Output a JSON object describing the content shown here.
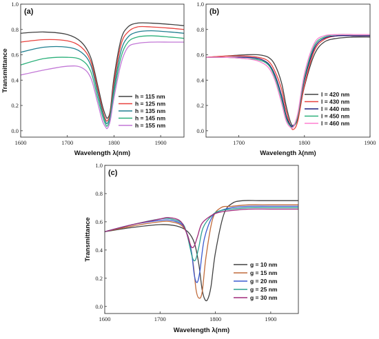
{
  "chart_data": [
    {
      "type": "line",
      "panel_label": "(a)",
      "xlabel": "Wavelength λ(nm)",
      "ylabel": "Transmittance",
      "xlim": [
        1600,
        1950
      ],
      "ylim": [
        -0.05,
        1.0
      ],
      "xticks": [
        1600,
        1700,
        1800,
        1900
      ],
      "yticks": [
        0.0,
        0.2,
        0.4,
        0.6,
        0.8,
        1.0
      ],
      "xtick_labels": [
        "1600",
        "1700",
        "1800",
        "1900"
      ],
      "ytick_labels": [
        "0.0",
        "0.2",
        "0.4",
        "0.6",
        "0.8",
        "1.0"
      ],
      "legend_position": "bottom-right",
      "series": [
        {
          "name": "h = 115 nm",
          "color": "#404040",
          "x": [
            1600,
            1650,
            1700,
            1730,
            1750,
            1765,
            1775,
            1782,
            1786,
            1792,
            1800,
            1815,
            1830,
            1850,
            1880,
            1920,
            1950
          ],
          "y": [
            0.77,
            0.78,
            0.76,
            0.7,
            0.58,
            0.36,
            0.2,
            0.12,
            0.1,
            0.16,
            0.42,
            0.72,
            0.82,
            0.85,
            0.85,
            0.84,
            0.83
          ]
        },
        {
          "name": "h = 125 nm",
          "color": "#e8413c",
          "x": [
            1600,
            1650,
            1700,
            1730,
            1750,
            1765,
            1775,
            1782,
            1786,
            1792,
            1800,
            1815,
            1830,
            1850,
            1880,
            1920,
            1950
          ],
          "y": [
            0.7,
            0.72,
            0.71,
            0.66,
            0.55,
            0.33,
            0.17,
            0.09,
            0.08,
            0.14,
            0.38,
            0.68,
            0.78,
            0.82,
            0.82,
            0.81,
            0.8
          ]
        },
        {
          "name": "h = 135 nm",
          "color": "#1f7f8f",
          "x": [
            1600,
            1650,
            1700,
            1730,
            1750,
            1765,
            1775,
            1782,
            1786,
            1792,
            1800,
            1815,
            1830,
            1850,
            1880,
            1920,
            1950
          ],
          "y": [
            0.62,
            0.66,
            0.66,
            0.62,
            0.52,
            0.3,
            0.15,
            0.07,
            0.06,
            0.12,
            0.34,
            0.63,
            0.74,
            0.78,
            0.79,
            0.78,
            0.77
          ]
        },
        {
          "name": "h = 145 nm",
          "color": "#2bb07a",
          "x": [
            1600,
            1650,
            1700,
            1730,
            1750,
            1765,
            1775,
            1782,
            1786,
            1792,
            1800,
            1815,
            1830,
            1850,
            1880,
            1920,
            1950
          ],
          "y": [
            0.52,
            0.57,
            0.58,
            0.56,
            0.47,
            0.26,
            0.12,
            0.05,
            0.04,
            0.1,
            0.3,
            0.58,
            0.7,
            0.74,
            0.75,
            0.74,
            0.73
          ]
        },
        {
          "name": "h = 155 nm",
          "color": "#c277d6",
          "x": [
            1600,
            1650,
            1700,
            1730,
            1750,
            1765,
            1775,
            1782,
            1786,
            1792,
            1800,
            1815,
            1830,
            1850,
            1880,
            1920,
            1950
          ],
          "y": [
            0.44,
            0.48,
            0.51,
            0.5,
            0.42,
            0.22,
            0.08,
            0.03,
            0.02,
            0.08,
            0.26,
            0.53,
            0.66,
            0.69,
            0.7,
            0.7,
            0.7
          ]
        }
      ]
    },
    {
      "type": "line",
      "panel_label": "(b)",
      "xlabel": "Wavelength λ(nm)",
      "ylabel": "",
      "xlim": [
        1650,
        1900
      ],
      "ylim": [
        -0.05,
        1.0
      ],
      "xticks": [
        1700,
        1800,
        1900
      ],
      "yticks": [
        0.0,
        0.2,
        0.4,
        0.6,
        0.8,
        1.0
      ],
      "xtick_labels": [
        "1700",
        "1800",
        "1900"
      ],
      "ytick_labels": [
        "0.0",
        "0.2",
        "0.4",
        "0.6",
        "0.8",
        "1.0"
      ],
      "legend_position": "bottom-right",
      "series": [
        {
          "name": "l = 420 nm",
          "color": "#404040",
          "x": [
            1650,
            1680,
            1710,
            1730,
            1745,
            1755,
            1765,
            1772,
            1778,
            1783,
            1790,
            1800,
            1815,
            1830,
            1850,
            1875,
            1900
          ],
          "y": [
            0.58,
            0.59,
            0.6,
            0.6,
            0.58,
            0.52,
            0.38,
            0.2,
            0.08,
            0.04,
            0.1,
            0.35,
            0.6,
            0.7,
            0.73,
            0.74,
            0.74
          ]
        },
        {
          "name": "l = 430 nm",
          "color": "#e8413c",
          "x": [
            1650,
            1680,
            1710,
            1730,
            1745,
            1755,
            1765,
            1772,
            1778,
            1783,
            1790,
            1800,
            1815,
            1830,
            1850,
            1875,
            1900
          ],
          "y": [
            0.58,
            0.59,
            0.59,
            0.58,
            0.55,
            0.47,
            0.33,
            0.16,
            0.05,
            0.01,
            0.08,
            0.36,
            0.63,
            0.72,
            0.75,
            0.75,
            0.75
          ]
        },
        {
          "name": "l = 440 nm",
          "color": "#1a1a7a",
          "x": [
            1650,
            1680,
            1710,
            1730,
            1745,
            1755,
            1765,
            1772,
            1778,
            1783,
            1790,
            1800,
            1815,
            1830,
            1850,
            1875,
            1900
          ],
          "y": [
            0.58,
            0.58,
            0.58,
            0.57,
            0.53,
            0.44,
            0.28,
            0.12,
            0.05,
            0.04,
            0.12,
            0.4,
            0.65,
            0.73,
            0.75,
            0.75,
            0.75
          ]
        },
        {
          "name": "l = 450 nm",
          "color": "#2bb07a",
          "x": [
            1650,
            1680,
            1710,
            1730,
            1745,
            1755,
            1765,
            1772,
            1778,
            1783,
            1790,
            1800,
            1815,
            1830,
            1850,
            1875,
            1900
          ],
          "y": [
            0.58,
            0.58,
            0.57,
            0.56,
            0.52,
            0.42,
            0.25,
            0.1,
            0.04,
            0.03,
            0.12,
            0.42,
            0.67,
            0.74,
            0.76,
            0.76,
            0.76
          ]
        },
        {
          "name": "l = 460 nm",
          "color": "#ff7fd0",
          "x": [
            1650,
            1680,
            1710,
            1730,
            1745,
            1755,
            1765,
            1772,
            1778,
            1783,
            1790,
            1800,
            1815,
            1830,
            1850,
            1875,
            1900
          ],
          "y": [
            0.58,
            0.58,
            0.57,
            0.55,
            0.5,
            0.4,
            0.22,
            0.08,
            0.03,
            0.03,
            0.14,
            0.45,
            0.69,
            0.75,
            0.76,
            0.76,
            0.76
          ]
        }
      ]
    },
    {
      "type": "line",
      "panel_label": "(c)",
      "xlabel": "Wavelength λ(nm)",
      "ylabel": "Transmittance",
      "xlim": [
        1600,
        1950
      ],
      "ylim": [
        -0.05,
        1.0
      ],
      "xticks": [
        1600,
        1700,
        1800,
        1900
      ],
      "yticks": [
        0.0,
        0.2,
        0.4,
        0.6,
        0.8,
        1.0
      ],
      "xtick_labels": [
        "1600",
        "1700",
        "1800",
        "1900"
      ],
      "ytick_labels": [
        "0.0",
        "0.2",
        "0.4",
        "0.6",
        "0.8",
        "1.0"
      ],
      "legend_position": "bottom-right",
      "series": [
        {
          "name": "g = 10 nm",
          "color": "#404040",
          "x": [
            1600,
            1650,
            1700,
            1730,
            1750,
            1762,
            1770,
            1776,
            1781,
            1786,
            1792,
            1800,
            1815,
            1830,
            1850,
            1880,
            1920,
            1950
          ],
          "y": [
            0.53,
            0.56,
            0.58,
            0.57,
            0.53,
            0.45,
            0.3,
            0.12,
            0.05,
            0.05,
            0.14,
            0.38,
            0.65,
            0.73,
            0.75,
            0.75,
            0.75,
            0.75
          ]
        },
        {
          "name": "g = 15 nm",
          "color": "#c06a3a",
          "x": [
            1600,
            1650,
            1700,
            1720,
            1740,
            1752,
            1760,
            1765,
            1770,
            1776,
            1783,
            1795,
            1810,
            1830,
            1860,
            1900,
            1950
          ],
          "y": [
            0.53,
            0.57,
            0.6,
            0.6,
            0.57,
            0.48,
            0.3,
            0.12,
            0.06,
            0.1,
            0.35,
            0.62,
            0.7,
            0.71,
            0.72,
            0.72,
            0.72
          ]
        },
        {
          "name": "g = 20 nm",
          "color": "#3a5ad0",
          "x": [
            1600,
            1650,
            1700,
            1720,
            1740,
            1750,
            1757,
            1762,
            1767,
            1772,
            1780,
            1795,
            1810,
            1830,
            1860,
            1900,
            1950
          ],
          "y": [
            0.53,
            0.58,
            0.61,
            0.61,
            0.58,
            0.5,
            0.38,
            0.22,
            0.17,
            0.25,
            0.48,
            0.64,
            0.68,
            0.7,
            0.71,
            0.71,
            0.71
          ]
        },
        {
          "name": "g = 25 nm",
          "color": "#2aa090",
          "x": [
            1600,
            1650,
            1700,
            1720,
            1740,
            1748,
            1754,
            1759,
            1764,
            1770,
            1778,
            1795,
            1810,
            1830,
            1860,
            1900,
            1950
          ],
          "y": [
            0.53,
            0.58,
            0.62,
            0.62,
            0.59,
            0.52,
            0.42,
            0.34,
            0.33,
            0.42,
            0.56,
            0.65,
            0.68,
            0.69,
            0.7,
            0.7,
            0.7
          ]
        },
        {
          "name": "g = 30 nm",
          "color": "#a02a7a",
          "x": [
            1600,
            1650,
            1700,
            1715,
            1735,
            1745,
            1752,
            1757,
            1762,
            1768,
            1776,
            1795,
            1810,
            1830,
            1860,
            1900,
            1950
          ],
          "y": [
            0.53,
            0.58,
            0.62,
            0.63,
            0.61,
            0.55,
            0.47,
            0.42,
            0.43,
            0.5,
            0.59,
            0.65,
            0.67,
            0.68,
            0.69,
            0.69,
            0.69
          ]
        }
      ]
    }
  ]
}
